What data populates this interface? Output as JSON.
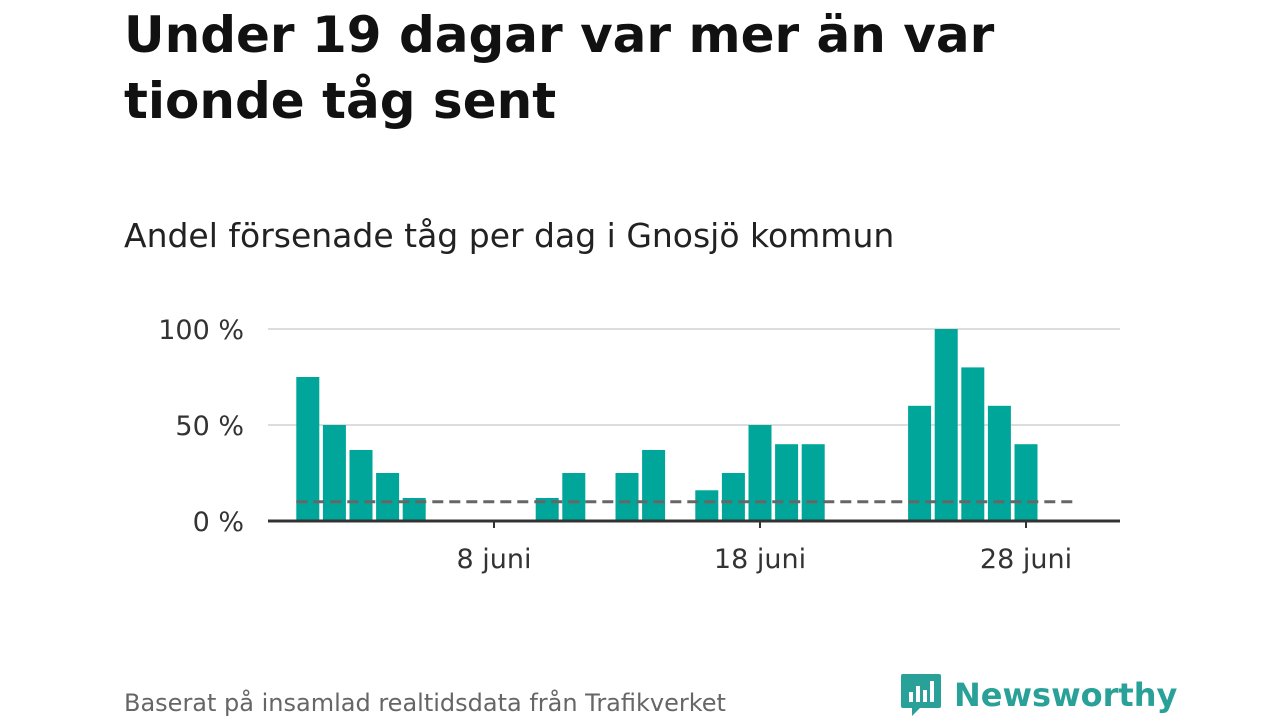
{
  "header": {
    "title": "Under 19 dagar var mer än var tionde tåg sent",
    "subtitle": "Andel försenade tåg per dag i Gnosjö kommun"
  },
  "footer": {
    "source": "Baserat på insamlad realtidsdata från Trafikverket",
    "brand": "Newsworthy"
  },
  "colors": {
    "bar": "#00a699",
    "reference_line": "#666666",
    "grid": "#dddddd",
    "axis": "#333333",
    "brand": "#2aa198"
  },
  "chart_data": {
    "type": "bar",
    "title": "Andel försenade tåg per dag i Gnosjö kommun",
    "xlabel": "",
    "ylabel": "",
    "ylim": [
      0,
      100
    ],
    "y_ticks": [
      {
        "value": 0,
        "label": "0 %"
      },
      {
        "value": 50,
        "label": "50 %"
      },
      {
        "value": 100,
        "label": "100 %"
      }
    ],
    "x_ticks": [
      {
        "day": 8,
        "label": "8 juni"
      },
      {
        "day": 18,
        "label": "18 juni"
      },
      {
        "day": 28,
        "label": "28 juni"
      }
    ],
    "xlim_days": [
      0.5,
      30.5
    ],
    "days": [
      1,
      2,
      3,
      4,
      5,
      6,
      7,
      8,
      9,
      10,
      11,
      12,
      13,
      14,
      15,
      16,
      17,
      18,
      19,
      20,
      21,
      22,
      23,
      24,
      25,
      26,
      27,
      28,
      29
    ],
    "values": [
      75,
      50,
      37,
      25,
      12,
      0,
      0,
      0,
      0,
      12,
      25,
      0,
      25,
      37,
      0,
      16,
      25,
      50,
      40,
      40,
      0,
      0,
      0,
      60,
      100,
      80,
      60,
      40,
      null
    ],
    "reference_line": {
      "value": 10,
      "from_day": 1,
      "to_day": 30
    },
    "grid": true,
    "legend": "none"
  }
}
